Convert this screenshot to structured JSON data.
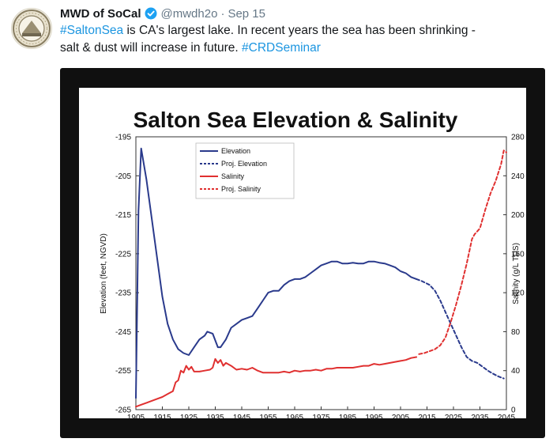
{
  "tweet": {
    "user_name": "MWD of SoCal",
    "handle": "@mwdh2o",
    "separator": "·",
    "date": "Sep 15",
    "text_parts": {
      "hashtag1": "#SaltonSea",
      "body1": " is CA's largest lake. In recent years the sea has been shrinking -",
      "body2": "salt & dust will increase in future. ",
      "hashtag2": "#CRDSeminar"
    },
    "colors": {
      "link": "#1b95e0",
      "verified": "#1da1f2",
      "muted": "#657786",
      "text": "#14171a"
    },
    "icons": {
      "verified": "verified-badge-icon",
      "avatar": "mwd-seal-logo"
    }
  },
  "chart_data": {
    "type": "line",
    "title": "Salton Sea Elevation & Salinity",
    "xlabel": "",
    "ylabel": "Elevation (feet, NGVD)",
    "y2label": "Salinity (g/L TDS)",
    "xlim": [
      1905,
      2045
    ],
    "ylim": [
      -265,
      -195
    ],
    "y2lim": [
      0,
      280
    ],
    "x_ticks": [
      "1905",
      "1915",
      "1925",
      "1935",
      "1945",
      "1955",
      "1965",
      "1975",
      "1985",
      "1995",
      "2005",
      "2015",
      "2025",
      "2035",
      "2045"
    ],
    "y_ticks": [
      "-195",
      "-205",
      "-215",
      "-225",
      "-235",
      "-245",
      "-255",
      "-265"
    ],
    "y2_ticks": [
      "280",
      "240",
      "200",
      "160",
      "120",
      "80",
      "40",
      "0"
    ],
    "grid": false,
    "legend_position": "top-left",
    "series": [
      {
        "name": "Elevation",
        "axis": "left",
        "color": "#2a3a8c",
        "dash": "solid",
        "points": [
          [
            1905,
            -262
          ],
          [
            1906,
            -214
          ],
          [
            1907,
            -198
          ],
          [
            1909,
            -206
          ],
          [
            1911,
            -216
          ],
          [
            1913,
            -226
          ],
          [
            1915,
            -236
          ],
          [
            1917,
            -243
          ],
          [
            1919,
            -247
          ],
          [
            1921,
            -249.5
          ],
          [
            1923,
            -250.5
          ],
          [
            1925,
            -251
          ],
          [
            1927,
            -249
          ],
          [
            1929,
            -247
          ],
          [
            1931,
            -246
          ],
          [
            1932,
            -245
          ],
          [
            1934,
            -245.5
          ],
          [
            1936,
            -249
          ],
          [
            1937,
            -249
          ],
          [
            1939,
            -247
          ],
          [
            1941,
            -244
          ],
          [
            1943,
            -243
          ],
          [
            1945,
            -242
          ],
          [
            1947,
            -241.5
          ],
          [
            1949,
            -241
          ],
          [
            1951,
            -239
          ],
          [
            1953,
            -237
          ],
          [
            1955,
            -235
          ],
          [
            1957,
            -234.5
          ],
          [
            1959,
            -234.5
          ],
          [
            1961,
            -233
          ],
          [
            1963,
            -232
          ],
          [
            1965,
            -231.5
          ],
          [
            1967,
            -231.5
          ],
          [
            1969,
            -231
          ],
          [
            1971,
            -230
          ],
          [
            1973,
            -229
          ],
          [
            1975,
            -228
          ],
          [
            1977,
            -227.5
          ],
          [
            1979,
            -227
          ],
          [
            1981,
            -227
          ],
          [
            1983,
            -227.5
          ],
          [
            1985,
            -227.5
          ],
          [
            1987,
            -227.3
          ],
          [
            1989,
            -227.5
          ],
          [
            1991,
            -227.5
          ],
          [
            1993,
            -227
          ],
          [
            1995,
            -227
          ],
          [
            1997,
            -227.3
          ],
          [
            1999,
            -227.5
          ],
          [
            2001,
            -228
          ],
          [
            2003,
            -228.5
          ],
          [
            2005,
            -229.5
          ],
          [
            2007,
            -230
          ],
          [
            2009,
            -231
          ],
          [
            2011,
            -231.5
          ]
        ]
      },
      {
        "name": "Proj. Elevation",
        "axis": "left",
        "color": "#2a3a8c",
        "dash": "dashed",
        "points": [
          [
            2011,
            -231.5
          ],
          [
            2013,
            -232
          ],
          [
            2016,
            -233
          ],
          [
            2018,
            -234.5
          ],
          [
            2020,
            -237
          ],
          [
            2022,
            -240
          ],
          [
            2024,
            -243
          ],
          [
            2026,
            -246
          ],
          [
            2028,
            -249
          ],
          [
            2030,
            -251.5
          ],
          [
            2032,
            -252.5
          ],
          [
            2034,
            -253
          ],
          [
            2036,
            -254
          ],
          [
            2038,
            -255
          ],
          [
            2040,
            -255.8
          ],
          [
            2042,
            -256.5
          ],
          [
            2044,
            -257
          ]
        ]
      },
      {
        "name": "Salinity",
        "axis": "right",
        "color": "#e03030",
        "dash": "solid",
        "points": [
          [
            1905,
            3
          ],
          [
            1907,
            5
          ],
          [
            1909,
            7
          ],
          [
            1911,
            9
          ],
          [
            1913,
            11
          ],
          [
            1915,
            13
          ],
          [
            1917,
            16
          ],
          [
            1919,
            19
          ],
          [
            1920,
            28
          ],
          [
            1921,
            30
          ],
          [
            1922,
            40
          ],
          [
            1923,
            38
          ],
          [
            1924,
            45
          ],
          [
            1925,
            41
          ],
          [
            1926,
            44
          ],
          [
            1927,
            39
          ],
          [
            1929,
            39
          ],
          [
            1931,
            40
          ],
          [
            1933,
            41
          ],
          [
            1934,
            43
          ],
          [
            1935,
            52
          ],
          [
            1936,
            48
          ],
          [
            1937,
            51
          ],
          [
            1938,
            45
          ],
          [
            1939,
            48
          ],
          [
            1941,
            45
          ],
          [
            1943,
            41
          ],
          [
            1945,
            42
          ],
          [
            1947,
            41
          ],
          [
            1949,
            43
          ],
          [
            1951,
            40
          ],
          [
            1953,
            38
          ],
          [
            1955,
            38
          ],
          [
            1957,
            38
          ],
          [
            1959,
            38
          ],
          [
            1961,
            39
          ],
          [
            1963,
            38
          ],
          [
            1965,
            40
          ],
          [
            1967,
            39
          ],
          [
            1969,
            40
          ],
          [
            1971,
            40
          ],
          [
            1973,
            41
          ],
          [
            1975,
            40
          ],
          [
            1977,
            42
          ],
          [
            1979,
            42
          ],
          [
            1981,
            43
          ],
          [
            1983,
            43
          ],
          [
            1985,
            43
          ],
          [
            1987,
            43
          ],
          [
            1989,
            44
          ],
          [
            1991,
            45
          ],
          [
            1993,
            45
          ],
          [
            1995,
            47
          ],
          [
            1997,
            46
          ],
          [
            1999,
            47
          ],
          [
            2001,
            48
          ],
          [
            2003,
            49
          ],
          [
            2005,
            50
          ],
          [
            2007,
            51
          ],
          [
            2009,
            53
          ],
          [
            2011,
            54
          ]
        ]
      },
      {
        "name": "Proj. Salinity",
        "axis": "right",
        "color": "#e03030",
        "dash": "dashed",
        "points": [
          [
            2012,
            57
          ],
          [
            2014,
            58
          ],
          [
            2016,
            60
          ],
          [
            2018,
            62
          ],
          [
            2020,
            66
          ],
          [
            2022,
            74
          ],
          [
            2024,
            90
          ],
          [
            2026,
            108
          ],
          [
            2028,
            128
          ],
          [
            2030,
            150
          ],
          [
            2032,
            175
          ],
          [
            2033,
            180
          ],
          [
            2035,
            186
          ],
          [
            2037,
            205
          ],
          [
            2039,
            222
          ],
          [
            2041,
            235
          ],
          [
            2043,
            252
          ],
          [
            2044,
            266
          ],
          [
            2045,
            264
          ]
        ]
      }
    ]
  }
}
